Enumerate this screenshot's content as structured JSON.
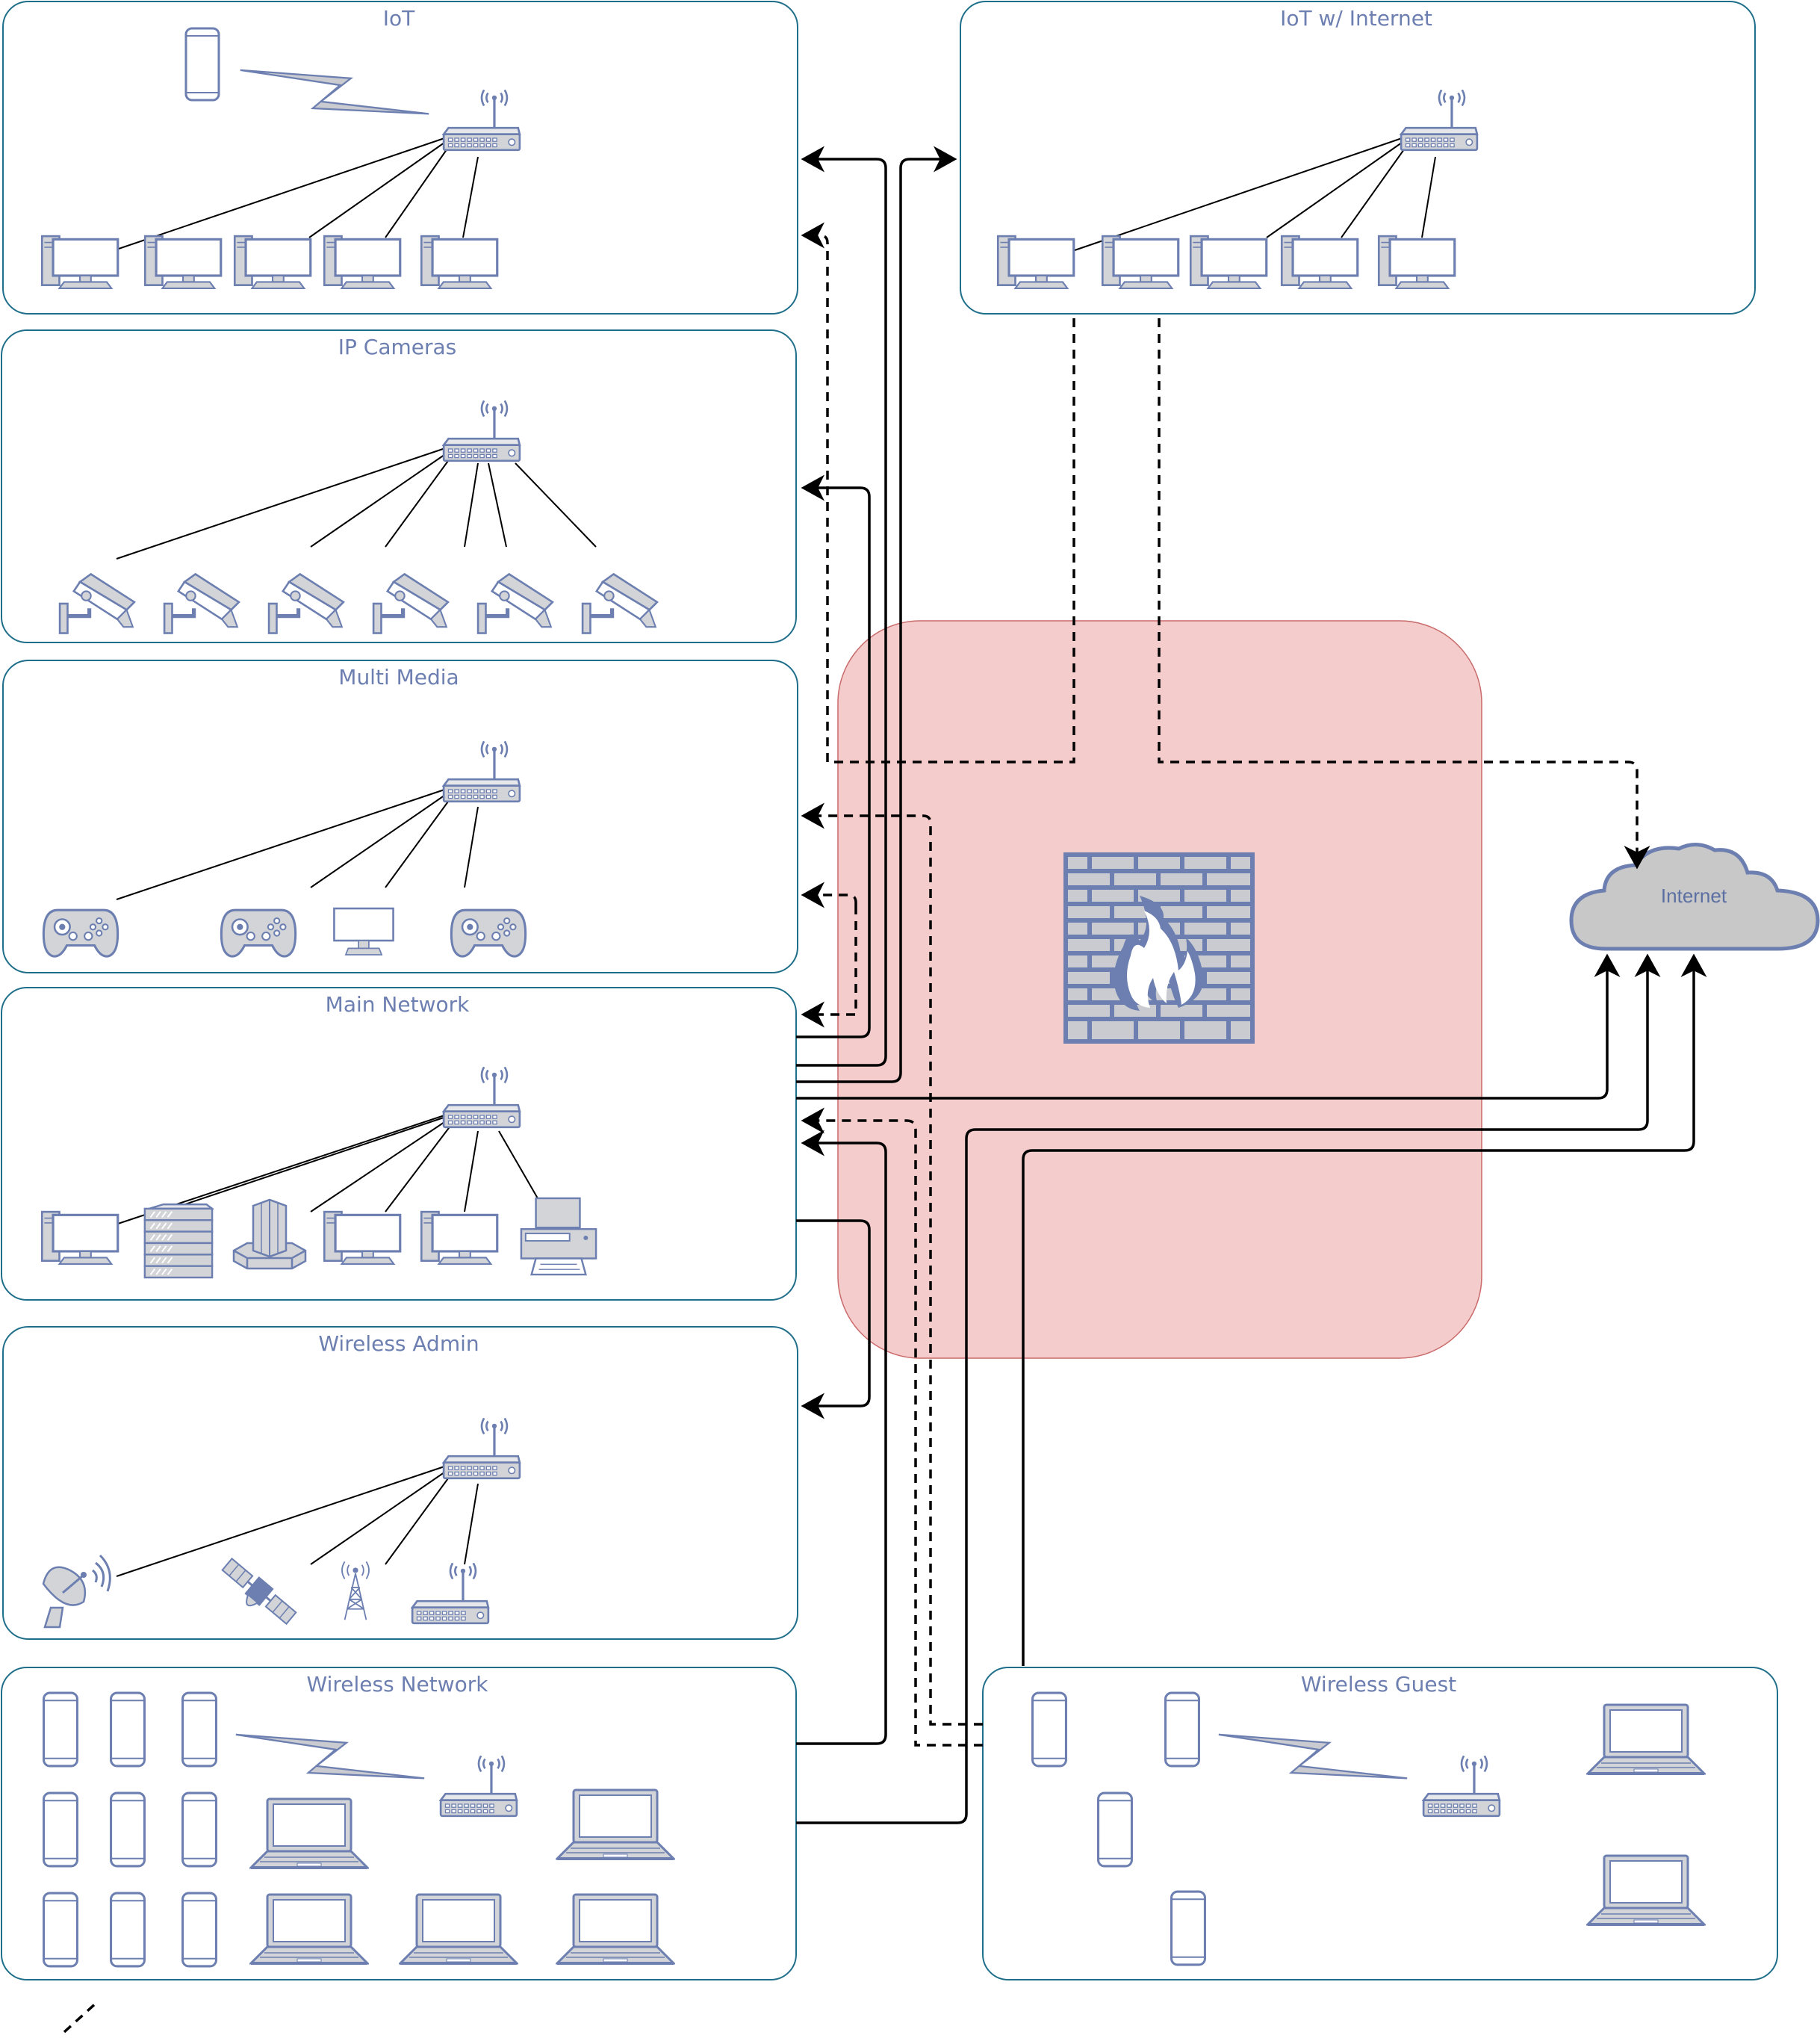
{
  "zones": {
    "iot": "IoT",
    "iot_internet": "IoT w/ Internet",
    "ip_cameras": "IP Cameras",
    "multi_media": "Multi Media",
    "main_network": "Main Network",
    "wireless_admin": "Wireless Admin",
    "wireless_network": "Wireless Network",
    "wireless_guest": "Wireless Guest"
  },
  "internet_label": "Internet",
  "colors": {
    "zone_border": "#1f6f8b",
    "device_stroke": "#6c7fb0",
    "device_fill": "#c9cbd0",
    "firewall_zone": "#f5cccc",
    "firewall_zone_border": "#c96a6a",
    "cloud_fill": "#c8c8c8",
    "cloud_stroke": "#6c7fb0"
  },
  "icons": [
    "router-icon",
    "desktop-icon",
    "phone-icon",
    "camera-icon",
    "gamepad-icon",
    "monitor-icon",
    "server-icon",
    "storage-icon",
    "printer-icon",
    "satellite-dish-icon",
    "satellite-icon",
    "cell-tower-icon",
    "laptop-icon",
    "wireless-link-icon",
    "firewall-icon",
    "cloud-icon"
  ]
}
